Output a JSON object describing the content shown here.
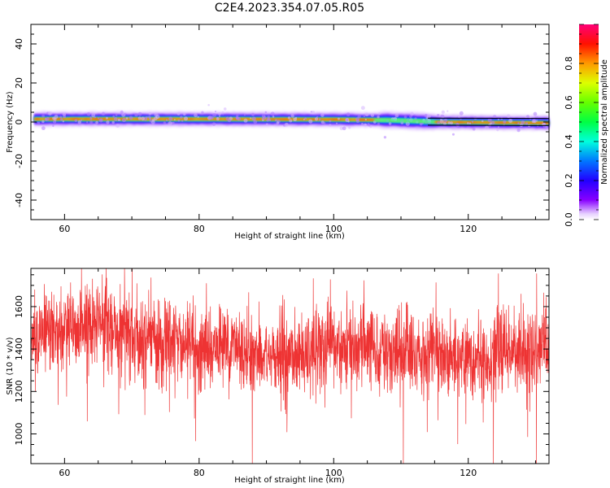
{
  "figure": {
    "title": "C2E4.2023.354.07.05.R05"
  },
  "chart_data": [
    {
      "type": "heatmap",
      "xlabel": "Height of straight line (km)",
      "ylabel": "Frequency (Hz)",
      "xlim": [
        55,
        132
      ],
      "ylim": [
        -50,
        50
      ],
      "xticks": [
        60,
        80,
        100,
        120
      ],
      "yticks": [
        -40,
        -20,
        0,
        20,
        40
      ],
      "colorbar": {
        "label": "Normalized spectral amplitude",
        "colormap": "rainbow",
        "range": [
          0,
          1
        ],
        "ticks": [
          "0.0",
          "0.2",
          "0.4",
          "0.6",
          "0.8"
        ]
      },
      "ridge": [
        {
          "x": 55.5,
          "y": 1.5
        },
        {
          "x": 80,
          "y": 1.5
        },
        {
          "x": 100,
          "y": 1.3
        },
        {
          "x": 108,
          "y": 1.0
        },
        {
          "x": 112,
          "y": 0.5
        },
        {
          "x": 115,
          "y": 0.0
        },
        {
          "x": 132,
          "y": -0.5
        }
      ],
      "band_halfwidth_hz": [
        3,
        5
      ]
    },
    {
      "type": "line",
      "xlabel": "Height of straight line (km)",
      "ylabel": "SNR (10 * v/v)",
      "xlim": [
        55,
        132
      ],
      "ylim": [
        860,
        1780
      ],
      "xticks": [
        60,
        80,
        100,
        120
      ],
      "yticks": [
        1000,
        1200,
        1400,
        1600
      ],
      "color": "#ee3333",
      "mean_profile": [
        {
          "x": 55,
          "y": 1470
        },
        {
          "x": 60,
          "y": 1490
        },
        {
          "x": 65,
          "y": 1500
        },
        {
          "x": 70,
          "y": 1470
        },
        {
          "x": 75,
          "y": 1440
        },
        {
          "x": 80,
          "y": 1400
        },
        {
          "x": 85,
          "y": 1420
        },
        {
          "x": 90,
          "y": 1360
        },
        {
          "x": 95,
          "y": 1370
        },
        {
          "x": 100,
          "y": 1410
        },
        {
          "x": 105,
          "y": 1400
        },
        {
          "x": 110,
          "y": 1380
        },
        {
          "x": 115,
          "y": 1380
        },
        {
          "x": 120,
          "y": 1360
        },
        {
          "x": 125,
          "y": 1380
        },
        {
          "x": 132,
          "y": 1400
        }
      ],
      "noise_spread": 130,
      "y_range_observed": [
        860,
        1780
      ]
    }
  ]
}
